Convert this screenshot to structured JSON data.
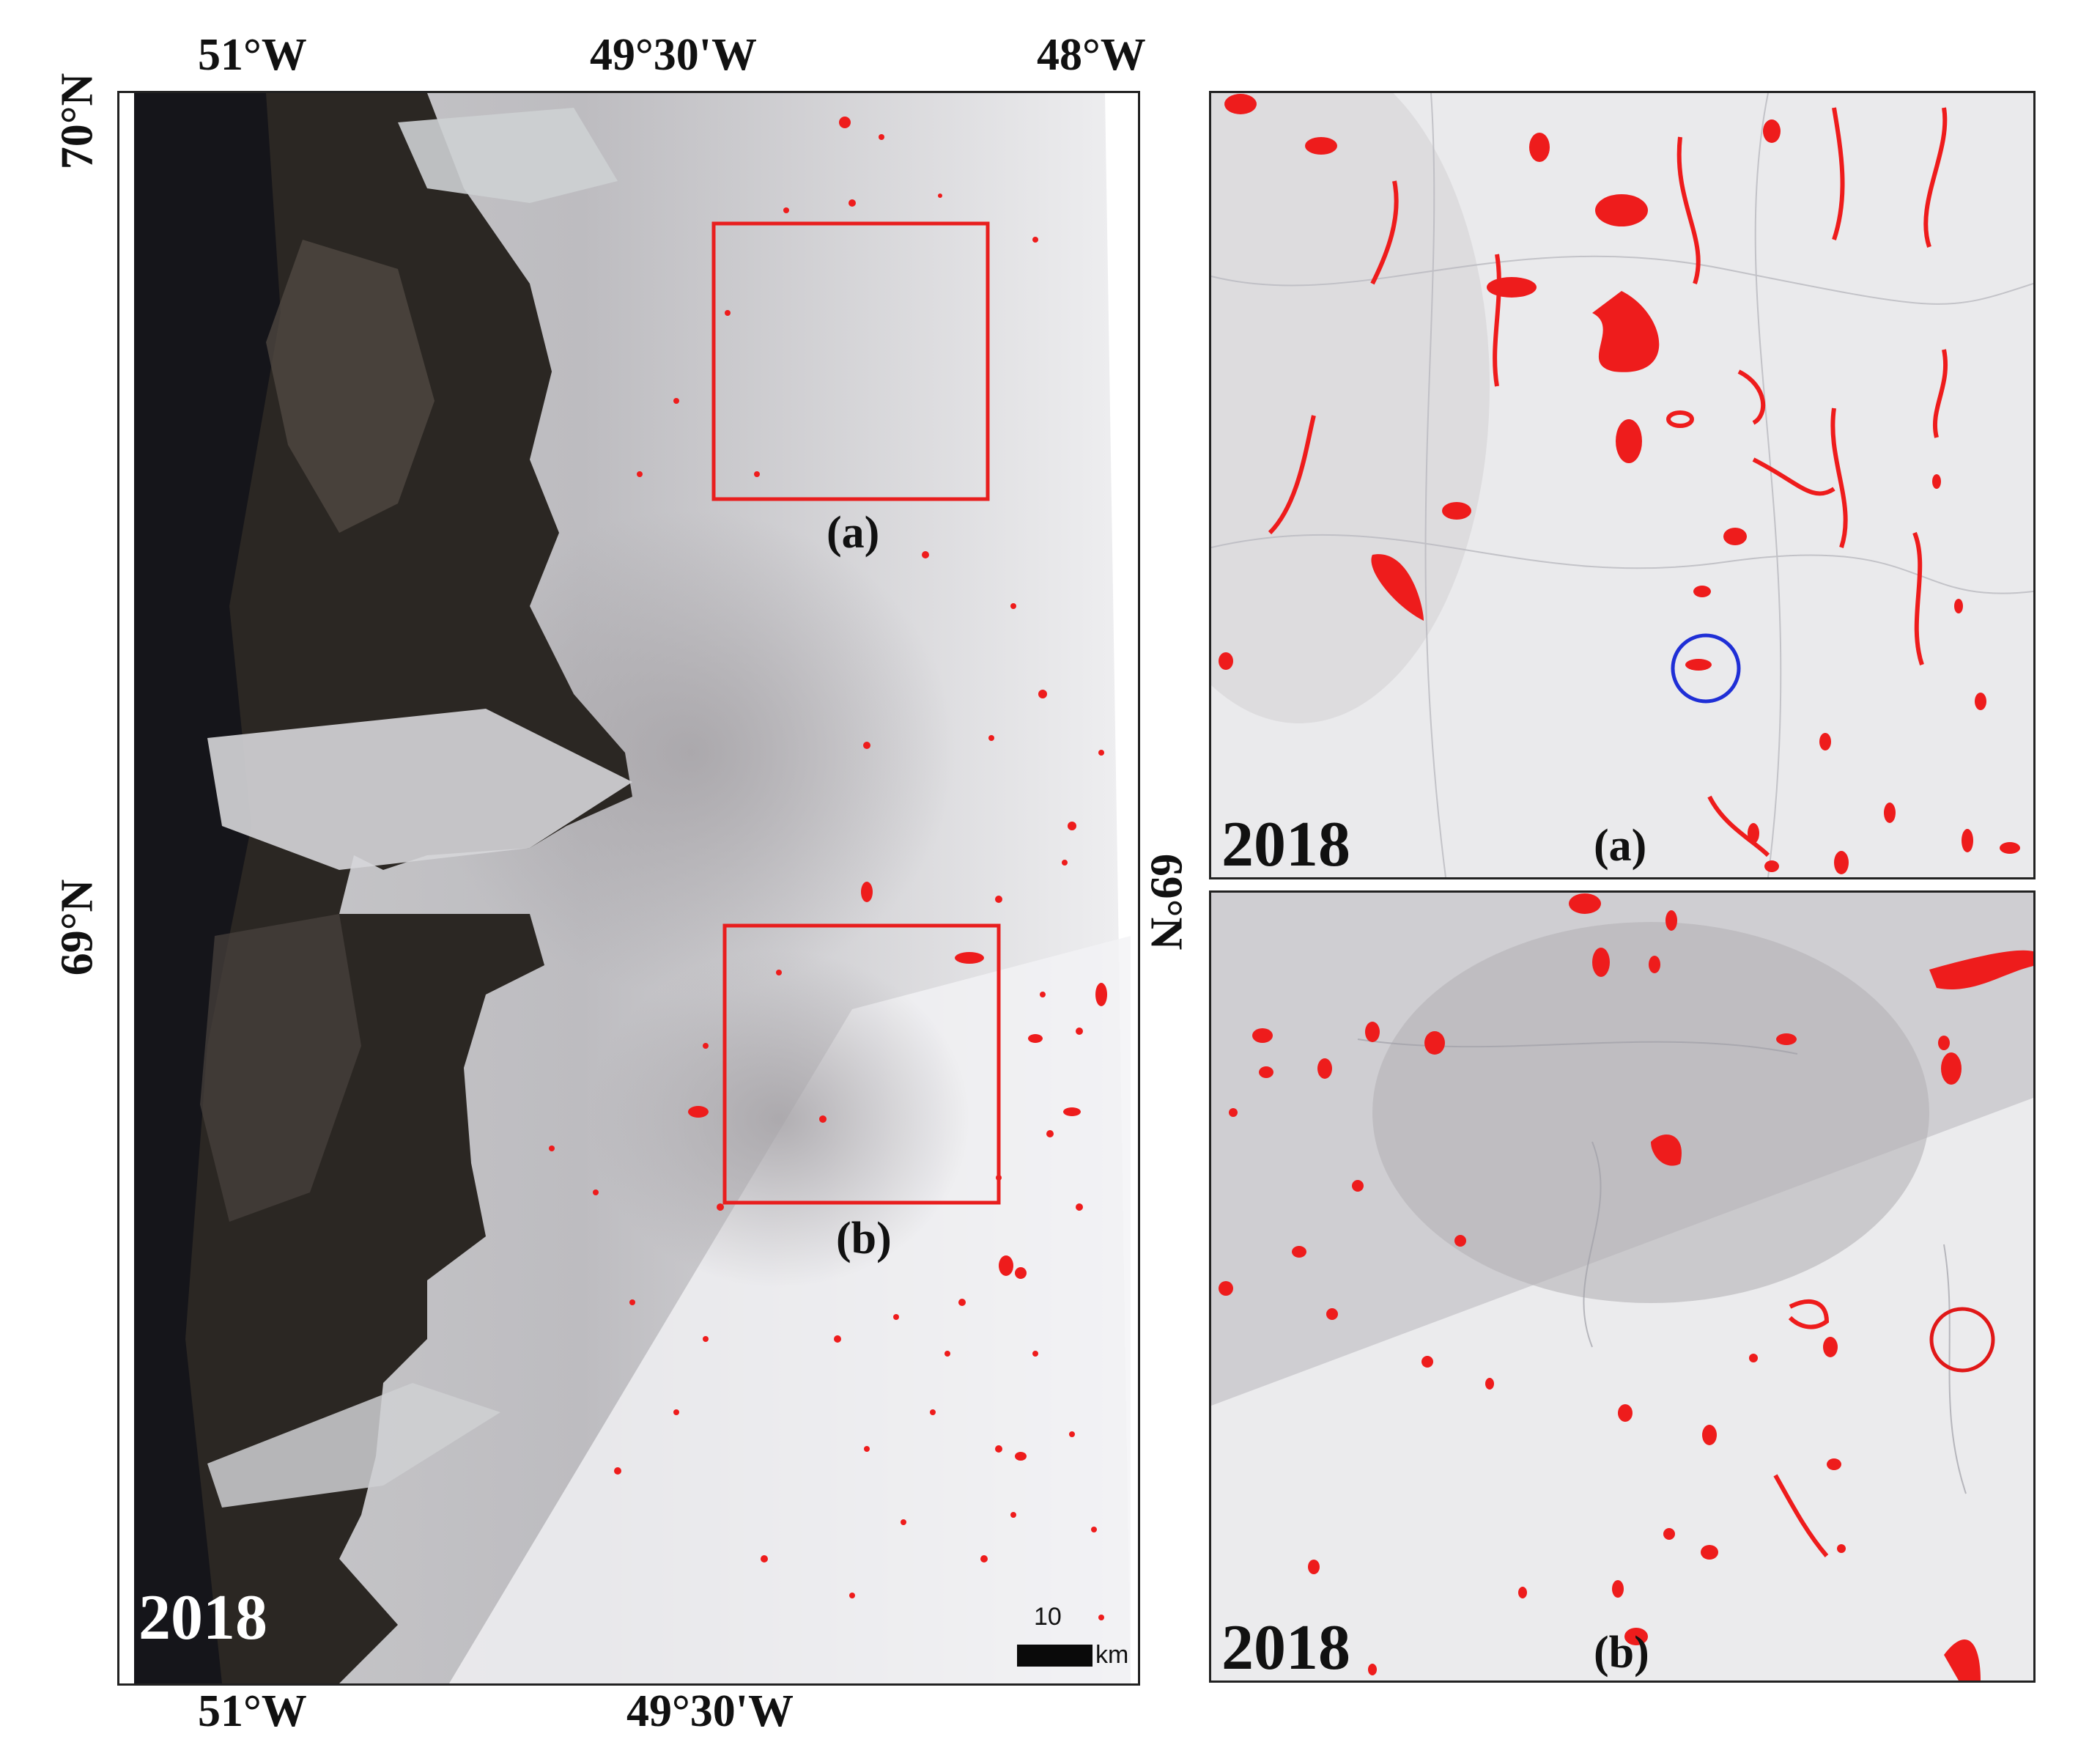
{
  "main_map": {
    "top_longitudes": [
      "51°W",
      "49°30'W",
      "48°W"
    ],
    "bottom_longitudes": [
      "51°W",
      "49°30'W"
    ],
    "left_latitudes": [
      "70°N",
      "69°N"
    ],
    "right_latitudes": [
      "69°N"
    ],
    "year": "2018",
    "box_labels": [
      "(a)",
      "(b)"
    ],
    "scale_bar": {
      "value": "10",
      "unit": "km"
    }
  },
  "inset_a": {
    "year": "2018",
    "label": "(a)",
    "highlight_color": "#1f2fd6"
  },
  "inset_b": {
    "year": "2018",
    "label": "(b)",
    "highlight_color": "#e01818"
  },
  "colors": {
    "lake": "#ee1c1c",
    "box": "#e81e1e",
    "land": "#2a2622",
    "ice": "#ececee"
  }
}
